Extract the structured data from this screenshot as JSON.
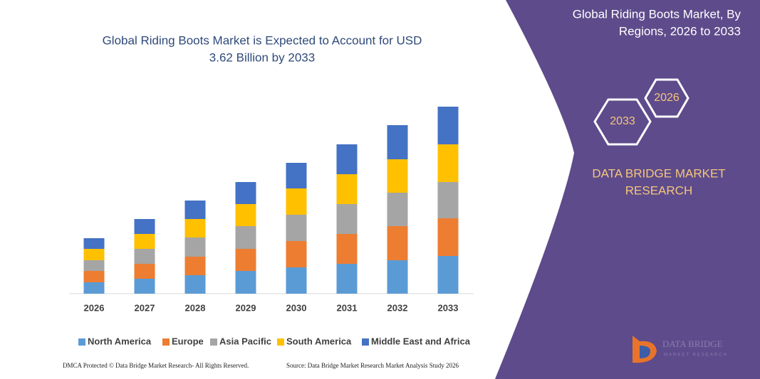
{
  "chart_data": {
    "type": "stacked-bar",
    "title": "Global Riding Boots Market is Expected to Account for USD",
    "subtitle": "3.62 Billion by 2033",
    "categories": [
      "2026",
      "2027",
      "2028",
      "2029",
      "2030",
      "2031",
      "2032",
      "2033"
    ],
    "series": [
      {
        "name": "North America",
        "color": "#5b9bd5",
        "values": [
          16,
          21,
          26,
          32,
          37,
          42,
          47,
          53
        ]
      },
      {
        "name": "Europe",
        "color": "#ed7d31",
        "values": [
          16,
          21,
          26,
          31,
          37,
          42,
          48,
          53
        ]
      },
      {
        "name": "Asia Pacific",
        "color": "#a5a5a5",
        "values": [
          15,
          21,
          27,
          32,
          37,
          42,
          47,
          51
        ]
      },
      {
        "name": "South America",
        "color": "#ffc000",
        "values": [
          16,
          21,
          26,
          31,
          37,
          42,
          47,
          53
        ]
      },
      {
        "name": "Middle East and Africa",
        "color": "#4472c4",
        "values": [
          15,
          21,
          26,
          31,
          36,
          42,
          48,
          53
        ]
      }
    ]
  },
  "panel": {
    "title_line1": "Global Riding Boots Market, By",
    "title_line2": "Regions, 2026 to 2033",
    "hex_start": "2026",
    "hex_end": "2033",
    "brand_line1": "DATA BRIDGE MARKET",
    "brand_line2": "RESEARCH",
    "logo_line1": "DATA BRIDGE",
    "logo_line2": "MARKET RESEARCH"
  },
  "footer": {
    "left": "DMCA Protected © Data Bridge Market Research- All Rights Reserved.",
    "right": "Source: Data Bridge Market Research Market Analysis Study 2026"
  }
}
